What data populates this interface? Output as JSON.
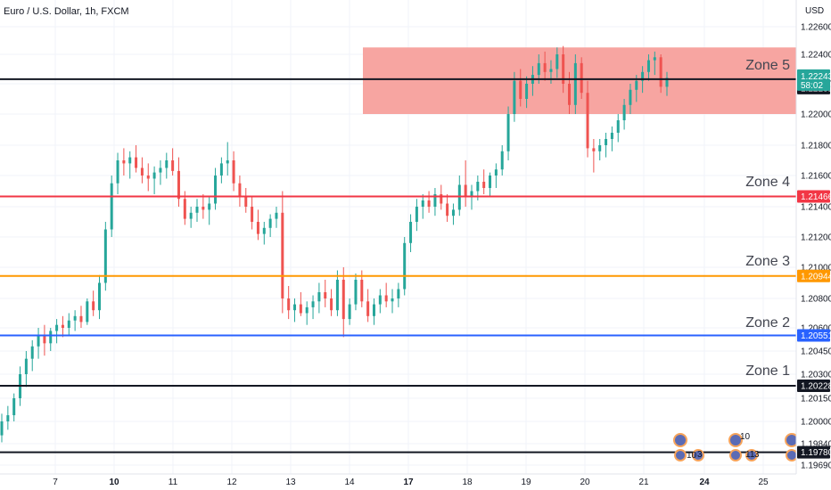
{
  "chart_data": {
    "type": "candlestick",
    "title": "Euro / U.S. Dollar, 1h, FXCM",
    "currency": "USD",
    "y_ticks": [
      1.226,
      1.224,
      1.222,
      1.22,
      1.218,
      1.216,
      1.214,
      1.212,
      1.21,
      1.208,
      1.206,
      1.2045,
      1.203,
      1.2015,
      1.2,
      1.1984,
      1.1969
    ],
    "y_tick_labels": [
      "1.22600",
      "1.22400",
      "1.22200",
      "1.22000",
      "1.21800",
      "1.21600",
      "1.21400",
      "1.21200",
      "1.21000",
      "1.20800",
      "1.20600",
      "1.20450",
      "1.20300",
      "1.20150",
      "1.20000",
      "1.19840",
      "1.19690"
    ],
    "x_ticks": [
      {
        "label": "7",
        "bold": false
      },
      {
        "label": "10",
        "bold": true
      },
      {
        "label": "11",
        "bold": false
      },
      {
        "label": "12",
        "bold": false
      },
      {
        "label": "13",
        "bold": false
      },
      {
        "label": "14",
        "bold": false
      },
      {
        "label": "17",
        "bold": true
      },
      {
        "label": "18",
        "bold": false
      },
      {
        "label": "19",
        "bold": false
      },
      {
        "label": "20",
        "bold": false
      },
      {
        "label": "21",
        "bold": false
      },
      {
        "label": "24",
        "bold": true
      },
      {
        "label": "25",
        "bold": false
      }
    ],
    "zones": [
      {
        "name": "Zone 5",
        "level": "1.22231",
        "value": 1.22231,
        "color": "#131722",
        "label_color": "#131722"
      },
      {
        "name": "Zone 4",
        "level": "1.21466",
        "value": 1.21466,
        "color": "#f23645",
        "label_color": "#f23645"
      },
      {
        "name": "Zone 3",
        "level": "1.20944",
        "value": 1.20944,
        "color": "#ff9800",
        "label_color": "#ff9800"
      },
      {
        "name": "Zone 2",
        "level": "1.20551",
        "value": 1.20551,
        "color": "#2962ff",
        "label_color": "#2962ff"
      },
      {
        "name": "Zone 1",
        "level": "1.20228",
        "value": 1.20228,
        "color": "#131722",
        "label_color": "#131722"
      },
      {
        "name": "",
        "level": "1.19780",
        "value": 1.1978,
        "color": "#131722",
        "label_color": "#131722"
      }
    ],
    "zone5_box": {
      "from_price": 1.2245,
      "to_price": 1.22,
      "color": "#f7a09c"
    },
    "current_price": {
      "value": 1.22243,
      "label": "1.22243",
      "countdown": "58:02",
      "color": "#26a69a"
    },
    "candles": [
      [
        1.199,
        1.2005,
        1.1985,
        1.2
      ],
      [
        1.2,
        1.201,
        1.1994,
        1.2004
      ],
      [
        1.2004,
        1.2018,
        1.2,
        1.2015
      ],
      [
        1.2015,
        1.2035,
        1.201,
        1.203
      ],
      [
        1.203,
        1.2045,
        1.2022,
        1.204
      ],
      [
        1.204,
        1.2052,
        1.2032,
        1.2048
      ],
      [
        1.2048,
        1.206,
        1.204,
        1.2055
      ],
      [
        1.2055,
        1.2062,
        1.2042,
        1.205
      ],
      [
        1.205,
        1.206,
        1.2045,
        1.2058
      ],
      [
        1.2058,
        1.2066,
        1.205,
        1.2062
      ],
      [
        1.2062,
        1.2068,
        1.2054,
        1.206
      ],
      [
        1.206,
        1.207,
        1.2055,
        1.2065
      ],
      [
        1.2065,
        1.2072,
        1.2058,
        1.2068
      ],
      [
        1.2068,
        1.2075,
        1.206,
        1.2064
      ],
      [
        1.2064,
        1.208,
        1.2062,
        1.2078
      ],
      [
        1.2078,
        1.2085,
        1.2068,
        1.2072
      ],
      [
        1.2072,
        1.2095,
        1.2066,
        1.209
      ],
      [
        1.209,
        1.213,
        1.2085,
        1.2125
      ],
      [
        1.2125,
        1.216,
        1.212,
        1.2155
      ],
      [
        1.2155,
        1.2175,
        1.2148,
        1.217
      ],
      [
        1.217,
        1.2178,
        1.216,
        1.2168
      ],
      [
        1.2168,
        1.2176,
        1.2158,
        1.2172
      ],
      [
        1.2172,
        1.218,
        1.2162,
        1.2165
      ],
      [
        1.2165,
        1.2172,
        1.2155,
        1.216
      ],
      [
        1.216,
        1.2168,
        1.215,
        1.2158
      ],
      [
        1.2158,
        1.2166,
        1.2148,
        1.2162
      ],
      [
        1.2162,
        1.217,
        1.2154,
        1.2165
      ],
      [
        1.2165,
        1.2175,
        1.2158,
        1.217
      ],
      [
        1.217,
        1.2178,
        1.216,
        1.2163
      ],
      [
        1.2163,
        1.2172,
        1.214,
        1.2145
      ],
      [
        1.2145,
        1.215,
        1.2128,
        1.2132
      ],
      [
        1.2132,
        1.214,
        1.2126,
        1.2136
      ],
      [
        1.2136,
        1.2145,
        1.213,
        1.214
      ],
      [
        1.214,
        1.2148,
        1.2132,
        1.2138
      ],
      [
        1.2138,
        1.2146,
        1.2128,
        1.2142
      ],
      [
        1.2142,
        1.2165,
        1.2138,
        1.216
      ],
      [
        1.216,
        1.2172,
        1.2155,
        1.2168
      ],
      [
        1.2168,
        1.2182,
        1.216,
        1.217
      ],
      [
        1.217,
        1.2176,
        1.215,
        1.2155
      ],
      [
        1.2155,
        1.216,
        1.214,
        1.2146
      ],
      [
        1.2146,
        1.2152,
        1.2136,
        1.214
      ],
      [
        1.214,
        1.2146,
        1.2125,
        1.213
      ],
      [
        1.213,
        1.2138,
        1.2118,
        1.2122
      ],
      [
        1.2122,
        1.213,
        1.2115,
        1.2126
      ],
      [
        1.2126,
        1.2135,
        1.212,
        1.2132
      ],
      [
        1.2132,
        1.214,
        1.2126,
        1.2136
      ],
      [
        1.2136,
        1.215,
        1.207,
        1.208
      ],
      [
        1.208,
        1.2088,
        1.2066,
        1.2072
      ],
      [
        1.2072,
        1.208,
        1.2064,
        1.2076
      ],
      [
        1.2076,
        1.2084,
        1.2068,
        1.207
      ],
      [
        1.207,
        1.2078,
        1.2062,
        1.2074
      ],
      [
        1.2074,
        1.2082,
        1.2066,
        1.2078
      ],
      [
        1.2078,
        1.209,
        1.207,
        1.2084
      ],
      [
        1.2084,
        1.2092,
        1.2074,
        1.208
      ],
      [
        1.208,
        1.2086,
        1.2068,
        1.2072
      ],
      [
        1.2072,
        1.2098,
        1.2068,
        1.2092
      ],
      [
        1.2092,
        1.21,
        1.2054,
        1.2066
      ],
      [
        1.2066,
        1.208,
        1.2062,
        1.2076
      ],
      [
        1.2076,
        1.2096,
        1.2072,
        1.2092
      ],
      [
        1.2092,
        1.2098,
        1.2074,
        1.2078
      ],
      [
        1.2078,
        1.2086,
        1.2064,
        1.2068
      ],
      [
        1.2068,
        1.208,
        1.2062,
        1.2076
      ],
      [
        1.2076,
        1.2086,
        1.207,
        1.2082
      ],
      [
        1.2082,
        1.209,
        1.2074,
        1.2078
      ],
      [
        1.2078,
        1.2086,
        1.207,
        1.208
      ],
      [
        1.208,
        1.209,
        1.2074,
        1.2086
      ],
      [
        1.2086,
        1.212,
        1.2082,
        1.2116
      ],
      [
        1.2116,
        1.2135,
        1.211,
        1.213
      ],
      [
        1.213,
        1.2145,
        1.2124,
        1.214
      ],
      [
        1.214,
        1.2148,
        1.2132,
        1.2144
      ],
      [
        1.2144,
        1.215,
        1.2136,
        1.214
      ],
      [
        1.214,
        1.2152,
        1.2134,
        1.2148
      ],
      [
        1.2148,
        1.2154,
        1.2138,
        1.2142
      ],
      [
        1.2142,
        1.2148,
        1.213,
        1.2134
      ],
      [
        1.2134,
        1.2142,
        1.2128,
        1.2138
      ],
      [
        1.2138,
        1.216,
        1.2134,
        1.2154
      ],
      [
        1.2154,
        1.217,
        1.214,
        1.2146
      ],
      [
        1.2146,
        1.2154,
        1.2138,
        1.215
      ],
      [
        1.215,
        1.216,
        1.2144,
        1.2156
      ],
      [
        1.2156,
        1.2164,
        1.2148,
        1.2152
      ],
      [
        1.2152,
        1.2162,
        1.2146,
        1.216
      ],
      [
        1.216,
        1.2168,
        1.2152,
        1.2164
      ],
      [
        1.2164,
        1.218,
        1.216,
        1.2176
      ],
      [
        1.2176,
        1.2205,
        1.217,
        1.22
      ],
      [
        1.22,
        1.2228,
        1.2195,
        1.2222
      ],
      [
        1.2222,
        1.223,
        1.2205,
        1.221
      ],
      [
        1.221,
        1.2225,
        1.2204,
        1.222
      ],
      [
        1.222,
        1.2232,
        1.2212,
        1.2226
      ],
      [
        1.2226,
        1.224,
        1.222,
        1.2234
      ],
      [
        1.2234,
        1.2242,
        1.2222,
        1.2228
      ],
      [
        1.2228,
        1.2236,
        1.222,
        1.223
      ],
      [
        1.223,
        1.2245,
        1.2224,
        1.224
      ],
      [
        1.224,
        1.2246,
        1.2214,
        1.222
      ],
      [
        1.222,
        1.2228,
        1.22,
        1.2206
      ],
      [
        1.2206,
        1.224,
        1.22,
        1.2234
      ],
      [
        1.2234,
        1.2238,
        1.221,
        1.2214
      ],
      [
        1.2214,
        1.2222,
        1.2172,
        1.2178
      ],
      [
        1.2178,
        1.2184,
        1.2162,
        1.2176
      ],
      [
        1.2176,
        1.2184,
        1.217,
        1.218
      ],
      [
        1.218,
        1.2188,
        1.2172,
        1.2184
      ],
      [
        1.2184,
        1.2192,
        1.2176,
        1.2188
      ],
      [
        1.2188,
        1.22,
        1.2182,
        1.2196
      ],
      [
        1.2196,
        1.221,
        1.219,
        1.2206
      ],
      [
        1.2206,
        1.222,
        1.22,
        1.2216
      ],
      [
        1.2216,
        1.2226,
        1.2208,
        1.2222
      ],
      [
        1.2222,
        1.2232,
        1.2214,
        1.2228
      ],
      [
        1.2228,
        1.224,
        1.2222,
        1.2236
      ],
      [
        1.2236,
        1.2242,
        1.2226,
        1.2238
      ],
      [
        1.2238,
        1.224,
        1.2214,
        1.2218
      ],
      [
        1.2218,
        1.2228,
        1.2212,
        1.2224
      ]
    ],
    "event_markers": [
      {
        "label": "10"
      },
      {
        "label": "3"
      },
      {
        "label": "10"
      },
      {
        "label": "11"
      },
      {
        "label": "3"
      }
    ]
  }
}
